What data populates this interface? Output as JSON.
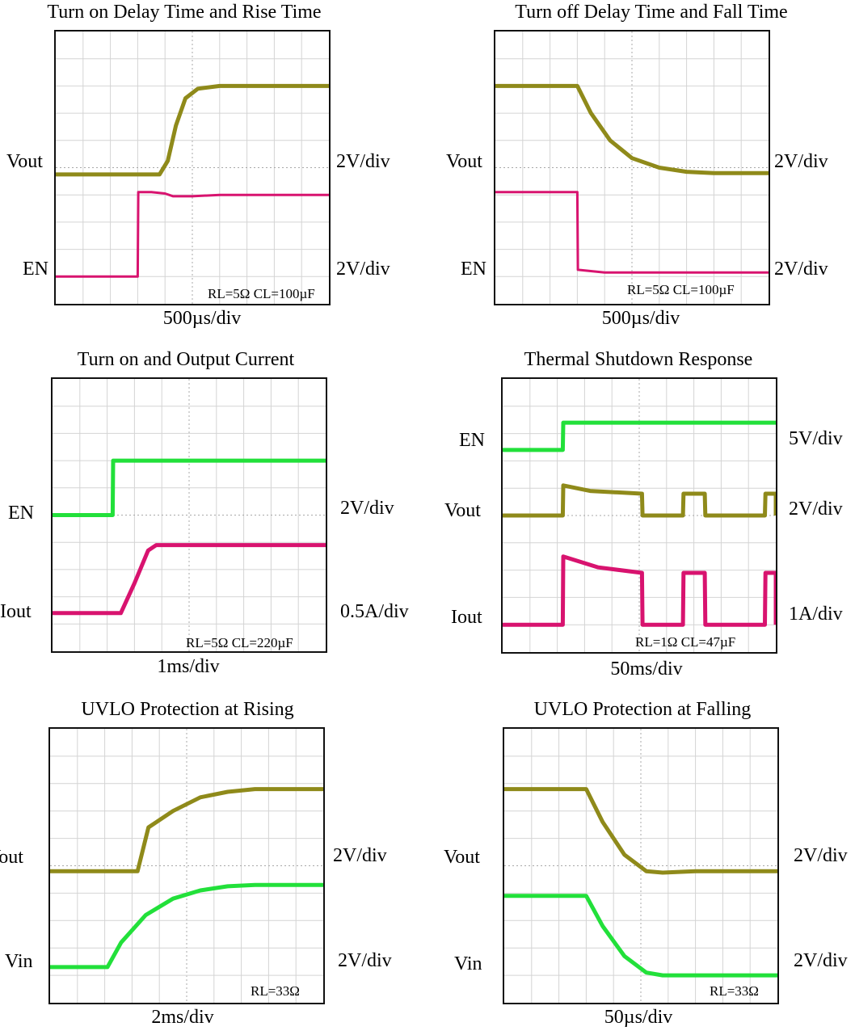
{
  "colors": {
    "yellow": "#8f8a1a",
    "magenta": "#d8136f",
    "green": "#22e03a",
    "grid": "#d4d4d4"
  },
  "chart_data": [
    {
      "type": "line",
      "title": "Turn on Delay Time and Rise Time",
      "xlabel": "500µs/div",
      "note": "RL=5Ω CL=100µF",
      "divisions": {
        "x": 10,
        "y": 10
      },
      "series": [
        {
          "name": "Vout",
          "scale": "2V/div",
          "color": "yellow",
          "stroke_width": 5,
          "points": [
            [
              0,
              5.25
            ],
            [
              3.8,
              5.25
            ],
            [
              4.1,
              4.75
            ],
            [
              4.4,
              3.45
            ],
            [
              4.75,
              2.45
            ],
            [
              5.2,
              2.1
            ],
            [
              6,
              2.0
            ],
            [
              10,
              2.0
            ]
          ]
        },
        {
          "name": "EN",
          "scale": "2V/div",
          "color": "magenta",
          "stroke_width": 3,
          "points": [
            [
              0,
              9.0
            ],
            [
              3.0,
              9.0
            ],
            [
              3.02,
              5.9
            ],
            [
              3.5,
              5.9
            ],
            [
              4.0,
              5.95
            ],
            [
              4.3,
              6.05
            ],
            [
              5,
              6.05
            ],
            [
              6,
              6.0
            ],
            [
              10,
              6.0
            ]
          ]
        }
      ]
    },
    {
      "type": "line",
      "title": "Turn off Delay Time and Fall Time",
      "xlabel": "500µs/div",
      "note": "RL=5Ω CL=100µF",
      "divisions": {
        "x": 10,
        "y": 10
      },
      "series": [
        {
          "name": "Vout",
          "scale": "2V/div",
          "color": "yellow",
          "stroke_width": 5,
          "points": [
            [
              0,
              2.0
            ],
            [
              3.0,
              2.0
            ],
            [
              3.5,
              3.0
            ],
            [
              4.2,
              4.0
            ],
            [
              5.0,
              4.65
            ],
            [
              6,
              5.0
            ],
            [
              7,
              5.15
            ],
            [
              8,
              5.2
            ],
            [
              10,
              5.2
            ]
          ]
        },
        {
          "name": "EN",
          "scale": "2V/div",
          "color": "magenta",
          "stroke_width": 3,
          "points": [
            [
              0,
              5.9
            ],
            [
              3.0,
              5.9
            ],
            [
              3.02,
              8.75
            ],
            [
              4,
              8.85
            ],
            [
              10,
              8.85
            ]
          ]
        }
      ]
    },
    {
      "type": "line",
      "title": "Turn on and Output Current",
      "xlabel": "1ms/div",
      "note": "RL=5Ω CL=220µF",
      "divisions": {
        "x": 10,
        "y": 10
      },
      "series": [
        {
          "name": "EN",
          "scale": "2V/div",
          "color": "green",
          "stroke_width": 5,
          "points": [
            [
              0,
              5.0
            ],
            [
              2.2,
              5.0
            ],
            [
              2.22,
              3.0
            ],
            [
              10,
              3.0
            ]
          ]
        },
        {
          "name": "Iout",
          "scale": "0.5A/div",
          "color": "magenta",
          "stroke_width": 5,
          "points": [
            [
              0,
              8.6
            ],
            [
              2.5,
              8.6
            ],
            [
              3.0,
              7.5
            ],
            [
              3.5,
              6.3
            ],
            [
              3.8,
              6.1
            ],
            [
              10,
              6.1
            ]
          ]
        }
      ]
    },
    {
      "type": "line",
      "title": "Thermal Shutdown Response",
      "xlabel": "50ms/div",
      "note": "RL=1Ω  CL=47µF",
      "divisions": {
        "x": 10,
        "y": 10
      },
      "series": [
        {
          "name": "EN",
          "scale": "5V/div",
          "color": "green",
          "stroke_width": 5,
          "points": [
            [
              0,
              2.6
            ],
            [
              2.2,
              2.6
            ],
            [
              2.22,
              1.6
            ],
            [
              10,
              1.6
            ]
          ]
        },
        {
          "name": "Vout",
          "scale": "2V/div",
          "color": "yellow",
          "stroke_width": 5,
          "points": [
            [
              0,
              5.0
            ],
            [
              2.2,
              5.0
            ],
            [
              2.22,
              3.9
            ],
            [
              3.2,
              4.1
            ],
            [
              5.1,
              4.2
            ],
            [
              5.12,
              5.0
            ],
            [
              6.6,
              5.0
            ],
            [
              6.62,
              4.2
            ],
            [
              7.4,
              4.2
            ],
            [
              7.42,
              5.0
            ],
            [
              9.6,
              5.0
            ],
            [
              9.62,
              4.2
            ],
            [
              10.0,
              4.2
            ],
            [
              10,
              5.0
            ]
          ]
        },
        {
          "name": "Iout",
          "scale": "1A/div",
          "color": "magenta",
          "stroke_width": 5,
          "points": [
            [
              0,
              9.0
            ],
            [
              2.2,
              9.0
            ],
            [
              2.22,
              6.5
            ],
            [
              3.5,
              6.9
            ],
            [
              5.1,
              7.1
            ],
            [
              5.12,
              9.0
            ],
            [
              6.6,
              9.0
            ],
            [
              6.62,
              7.1
            ],
            [
              7.4,
              7.1
            ],
            [
              7.42,
              9.0
            ],
            [
              9.6,
              9.0
            ],
            [
              9.62,
              7.1
            ],
            [
              10.0,
              7.1
            ],
            [
              10,
              9.0
            ]
          ]
        }
      ]
    },
    {
      "type": "line",
      "title": "UVLO Protection at Rising",
      "xlabel": "2ms/div",
      "note": "RL=33Ω",
      "divisions": {
        "x": 10,
        "y": 10
      },
      "series": [
        {
          "name": "Vout",
          "scale": "2V/div",
          "color": "yellow",
          "stroke_width": 5,
          "points": [
            [
              0,
              5.2
            ],
            [
              3.2,
              5.2
            ],
            [
              3.6,
              3.6
            ],
            [
              4.5,
              3.0
            ],
            [
              5.5,
              2.5
            ],
            [
              6.5,
              2.3
            ],
            [
              7.5,
              2.2
            ],
            [
              10,
              2.2
            ]
          ]
        },
        {
          "name": "Vin",
          "scale": "2V/div",
          "color": "green",
          "stroke_width": 5,
          "points": [
            [
              0,
              8.7
            ],
            [
              2.1,
              8.7
            ],
            [
              2.6,
              7.8
            ],
            [
              3.5,
              6.8
            ],
            [
              4.5,
              6.2
            ],
            [
              5.5,
              5.9
            ],
            [
              6.5,
              5.75
            ],
            [
              7.5,
              5.7
            ],
            [
              10,
              5.7
            ]
          ]
        }
      ]
    },
    {
      "type": "line",
      "title": "UVLO Protection at Falling",
      "xlabel": "50µs/div",
      "note": "RL=33Ω",
      "divisions": {
        "x": 10,
        "y": 10
      },
      "series": [
        {
          "name": "Vout",
          "scale": "2V/div",
          "color": "yellow",
          "stroke_width": 5,
          "points": [
            [
              0,
              2.2
            ],
            [
              3.0,
              2.2
            ],
            [
              3.6,
              3.4
            ],
            [
              4.4,
              4.6
            ],
            [
              5.2,
              5.2
            ],
            [
              5.8,
              5.25
            ],
            [
              7,
              5.2
            ],
            [
              10,
              5.2
            ]
          ]
        },
        {
          "name": "Vin",
          "scale": "2V/div",
          "color": "green",
          "stroke_width": 5,
          "points": [
            [
              0,
              6.1
            ],
            [
              3.0,
              6.1
            ],
            [
              3.6,
              7.2
            ],
            [
              4.4,
              8.3
            ],
            [
              5.2,
              8.9
            ],
            [
              5.8,
              9.0
            ],
            [
              7,
              9.0
            ],
            [
              10,
              9.0
            ]
          ]
        }
      ]
    }
  ]
}
